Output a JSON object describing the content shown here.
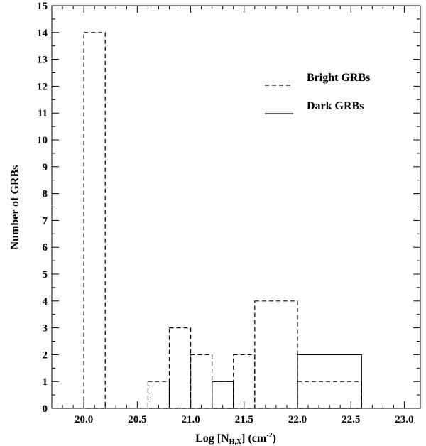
{
  "chart_data": {
    "type": "histogram",
    "xlabel": {
      "prefix": "Log [N",
      "sub": "H,X",
      "mid": "] (cm",
      "sup": "-2",
      "suffix": ")"
    },
    "ylabel": "Number of GRBs",
    "xlim": [
      19.7,
      23.15
    ],
    "ylim": [
      0,
      15
    ],
    "xticks": [
      "20.0",
      "20.5",
      "21.0",
      "21.5",
      "22.0",
      "22.5",
      "23.0"
    ],
    "yticks": [
      "0",
      "1",
      "2",
      "3",
      "4",
      "5",
      "6",
      "7",
      "8",
      "9",
      "10",
      "11",
      "12",
      "13",
      "14",
      "15"
    ],
    "grid": false,
    "legend_position": "top-right",
    "series": [
      {
        "name": "Bright GRBs",
        "line_style": "dashed",
        "color": "#000000",
        "bins": [
          {
            "x0": 20.0,
            "x1": 20.2,
            "count": 14
          },
          {
            "x0": 20.6,
            "x1": 20.8,
            "count": 1
          },
          {
            "x0": 20.8,
            "x1": 21.0,
            "count": 3
          },
          {
            "x0": 21.0,
            "x1": 21.2,
            "count": 2
          },
          {
            "x0": 21.2,
            "x1": 21.4,
            "count": 1
          },
          {
            "x0": 21.4,
            "x1": 21.6,
            "count": 2
          },
          {
            "x0": 21.6,
            "x1": 22.0,
            "count": 4
          },
          {
            "x0": 22.0,
            "x1": 22.6,
            "count": 1
          }
        ]
      },
      {
        "name": "Dark GRBs",
        "line_style": "solid",
        "color": "#000000",
        "bins": [
          {
            "x0": 21.2,
            "x1": 21.4,
            "count": 1
          },
          {
            "x0": 22.0,
            "x1": 22.6,
            "count": 2
          }
        ]
      }
    ]
  }
}
